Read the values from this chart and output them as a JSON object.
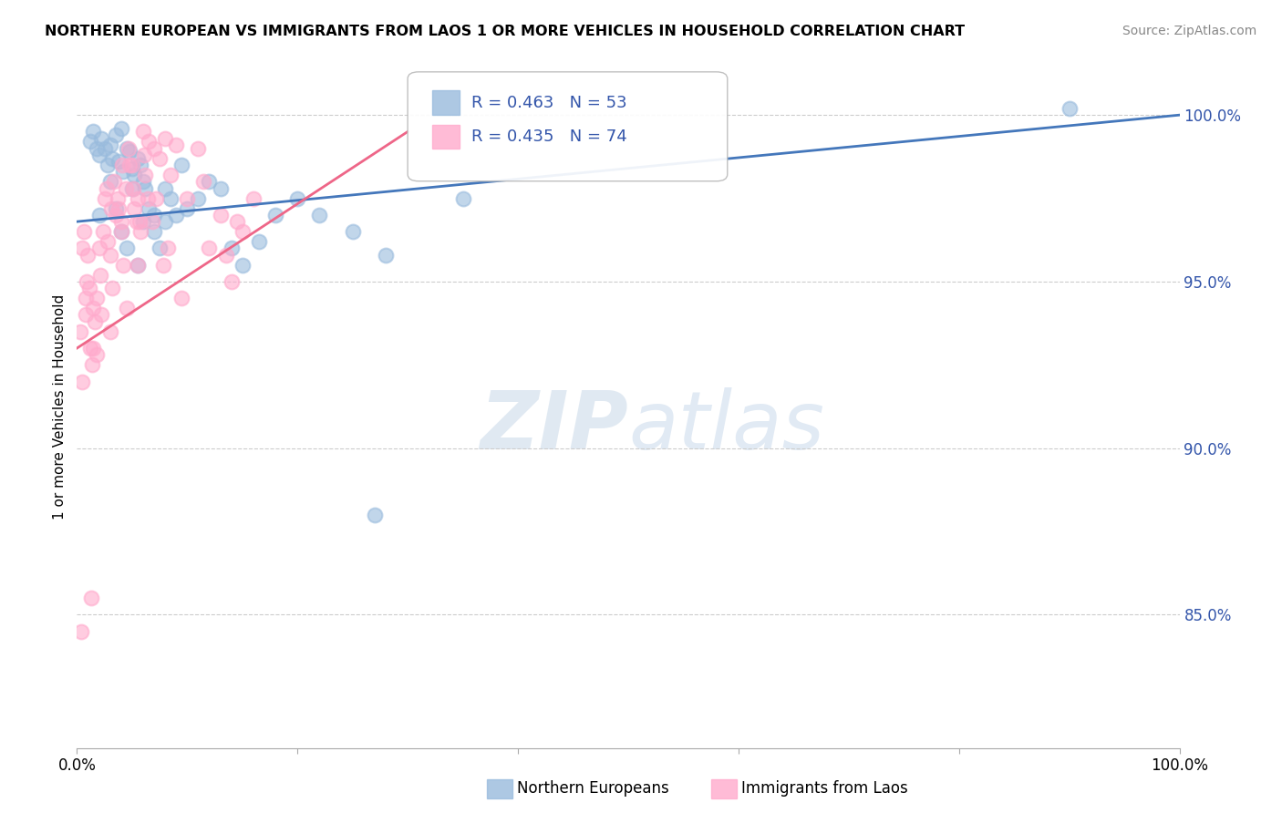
{
  "title": "NORTHERN EUROPEAN VS IMMIGRANTS FROM LAOS 1 OR MORE VEHICLES IN HOUSEHOLD CORRELATION CHART",
  "source": "Source: ZipAtlas.com",
  "ylabel": "1 or more Vehicles in Household",
  "xlim": [
    0.0,
    100.0
  ],
  "ylim": [
    81.0,
    101.5
  ],
  "yticks": [
    85.0,
    90.0,
    95.0,
    100.0
  ],
  "ytick_labels": [
    "85.0%",
    "90.0%",
    "95.0%",
    "100.0%"
  ],
  "xticks": [
    0.0,
    20.0,
    40.0,
    60.0,
    80.0,
    100.0
  ],
  "xtick_labels": [
    "0.0%",
    "",
    "",
    "",
    "",
    "100.0%"
  ],
  "blue_R": 0.463,
  "blue_N": 53,
  "pink_R": 0.435,
  "pink_N": 74,
  "blue_color": "#99BBDD",
  "pink_color": "#FFAACC",
  "blue_line_color": "#4477BB",
  "pink_line_color": "#EE6688",
  "legend1_label": "Northern Europeans",
  "legend2_label": "Immigrants from Laos",
  "watermark_zip": "ZIP",
  "watermark_atlas": "atlas",
  "blue_scatter_x": [
    1.2,
    1.5,
    1.8,
    2.0,
    2.2,
    2.5,
    2.8,
    3.0,
    3.2,
    3.5,
    3.8,
    4.0,
    4.2,
    4.5,
    4.8,
    5.0,
    5.2,
    5.5,
    5.8,
    6.0,
    6.2,
    6.5,
    7.0,
    7.5,
    8.0,
    8.5,
    9.0,
    9.5,
    10.0,
    11.0,
    12.0,
    13.0,
    14.0,
    15.0,
    16.5,
    18.0,
    20.0,
    22.0,
    25.0,
    28.0,
    35.0,
    90.0,
    2.0,
    3.5,
    4.0,
    5.0,
    6.0,
    7.0,
    8.0,
    3.0,
    4.5,
    5.5,
    27.0
  ],
  "blue_scatter_y": [
    99.2,
    99.5,
    99.0,
    98.8,
    99.3,
    99.0,
    98.5,
    99.1,
    98.7,
    99.4,
    98.6,
    99.6,
    98.3,
    99.0,
    98.9,
    98.4,
    98.2,
    98.7,
    98.5,
    98.0,
    97.8,
    97.2,
    96.5,
    96.0,
    96.8,
    97.5,
    97.0,
    98.5,
    97.2,
    97.5,
    98.0,
    97.8,
    96.0,
    95.5,
    96.2,
    97.0,
    97.5,
    97.0,
    96.5,
    95.8,
    97.5,
    100.2,
    97.0,
    97.2,
    96.5,
    97.8,
    96.8,
    97.0,
    97.8,
    98.0,
    96.0,
    95.5,
    88.0
  ],
  "pink_scatter_x": [
    0.3,
    0.5,
    0.6,
    0.8,
    0.9,
    1.0,
    1.1,
    1.2,
    1.4,
    1.5,
    1.6,
    1.8,
    2.0,
    2.1,
    2.2,
    2.4,
    2.5,
    2.7,
    2.8,
    3.0,
    3.1,
    3.2,
    3.4,
    3.5,
    3.7,
    3.8,
    4.0,
    4.1,
    4.2,
    4.4,
    4.5,
    4.7,
    4.8,
    5.0,
    5.1,
    5.2,
    5.4,
    5.5,
    5.7,
    5.8,
    6.0,
    6.1,
    6.2,
    6.4,
    6.5,
    6.8,
    7.0,
    7.2,
    7.5,
    7.8,
    8.0,
    8.2,
    8.5,
    9.0,
    9.5,
    10.0,
    11.0,
    11.5,
    12.0,
    13.0,
    14.0,
    15.0,
    16.0,
    0.5,
    0.8,
    1.5,
    1.8,
    3.0,
    4.0,
    5.5,
    13.5,
    14.5,
    0.4,
    1.3
  ],
  "pink_scatter_y": [
    93.5,
    96.0,
    96.5,
    94.5,
    95.0,
    95.8,
    94.8,
    93.0,
    92.5,
    94.2,
    93.8,
    94.5,
    96.0,
    95.2,
    94.0,
    96.5,
    97.5,
    97.8,
    96.2,
    95.8,
    97.2,
    94.8,
    98.0,
    97.0,
    97.5,
    97.2,
    96.5,
    98.5,
    95.5,
    97.8,
    94.2,
    99.0,
    98.5,
    98.5,
    97.8,
    97.2,
    96.8,
    97.5,
    96.8,
    96.5,
    99.5,
    98.8,
    98.2,
    97.5,
    99.2,
    96.8,
    99.0,
    97.5,
    98.7,
    95.5,
    99.3,
    96.0,
    98.2,
    99.1,
    94.5,
    97.5,
    99.0,
    98.0,
    96.0,
    97.0,
    95.0,
    96.5,
    97.5,
    92.0,
    94.0,
    93.0,
    92.8,
    93.5,
    96.8,
    95.5,
    95.8,
    96.8,
    84.5,
    85.5
  ],
  "blue_trendline_x0": 0.0,
  "blue_trendline_y0": 96.8,
  "blue_trendline_x1": 100.0,
  "blue_trendline_y1": 100.0,
  "pink_trendline_x0": 0.0,
  "pink_trendline_y0": 93.0,
  "pink_trendline_x1": 30.0,
  "pink_trendline_y1": 99.5
}
